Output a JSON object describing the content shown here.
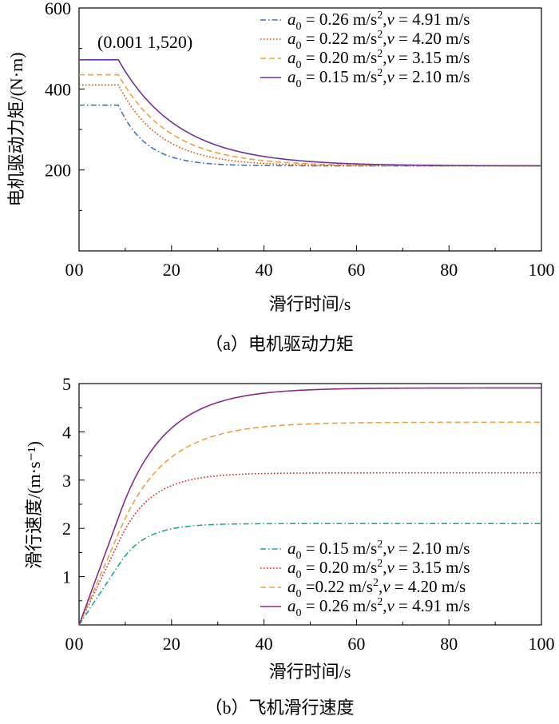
{
  "chart_data": [
    {
      "type": "line",
      "caption": "（a）电机驱动力矩",
      "title": "",
      "xlabel": "滑行时间/s",
      "ylabel": "电机驱动力矩/(N·m)",
      "xlim": [
        0,
        100
      ],
      "ylim": [
        0,
        600
      ],
      "xticks": [
        0,
        20,
        40,
        60,
        80,
        100
      ],
      "yticks": [
        200,
        400,
        600
      ],
      "annotation": "(0.001 1,520)",
      "legend_position": "top-right",
      "series": [
        {
          "name": "a0 = 0.26 m/s2,v = 4.91 m/s",
          "label": {
            "pre": "a",
            "sub": "0",
            "mid": " = 0.26 m/s",
            "sup": "2",
            "comma": ",",
            "v": "v",
            "post": " = 4.91 m/s"
          },
          "color": "#4472c4",
          "dash": "dashdot",
          "plateau": 360,
          "final": 210,
          "t_switch": 8.5,
          "tau": 6
        },
        {
          "name": "a0 = 0.22 m/s2,v = 4.20 m/s",
          "label": {
            "pre": "a",
            "sub": "0",
            "mid": " = 0.22 m/s",
            "sup": "2",
            "comma": ",",
            "v": "v",
            "post": " = 4.20 m/s"
          },
          "color": "#c55a11",
          "dash": "dotted",
          "plateau": 410,
          "final": 210,
          "t_switch": 8.5,
          "tau": 9
        },
        {
          "name": "a0 = 0.20 m/s2,v = 3.15 m/s",
          "label": {
            "pre": "a",
            "sub": "0",
            "mid": " = 0.20 m/s",
            "sup": "2",
            "comma": ",",
            "v": "v",
            "post": " = 3.15 m/s"
          },
          "color": "#e8a33c",
          "dash": "dashed",
          "plateau": 435,
          "final": 210,
          "t_switch": 8.5,
          "tau": 11
        },
        {
          "name": "a0 = 0.15 m/s2,v = 2.10 m/s",
          "label": {
            "pre": "a",
            "sub": "0",
            "mid": " = 0.15 m/s",
            "sup": "2",
            "comma": ",",
            "v": "v",
            "post": " = 2.10 m/s"
          },
          "color": "#7030a0",
          "dash": "solid",
          "plateau": 472,
          "final": 210,
          "t_switch": 8.5,
          "tau": 13
        }
      ]
    },
    {
      "type": "line",
      "caption": "（b）飞机滑行速度",
      "title": "",
      "xlabel": "滑行时间/s",
      "ylabel": "滑行速度/(m·s⁻¹)",
      "xlim": [
        0,
        100
      ],
      "ylim": [
        0,
        5
      ],
      "xticks": [
        0,
        20,
        40,
        60,
        80,
        100
      ],
      "yticks": [
        1,
        2,
        3,
        4,
        5
      ],
      "legend_position": "bottom-right",
      "series": [
        {
          "name": "a0 = 0.15 m/s2,v = 2.10 m/s",
          "label": {
            "pre": "a",
            "sub": "0",
            "mid": " = 0.15 m/s",
            "sup": "2",
            "comma": ",",
            "v": "v",
            "post": " = 2.10 m/s"
          },
          "color": "#1aa79a",
          "dash": "dashdot",
          "final": 2.1,
          "t_switch": 9,
          "v_switch": 1.3
        },
        {
          "name": "a0 = 0.20 m/s2,v = 3.15 m/s",
          "label": {
            "pre": "a",
            "sub": "0",
            "mid": " = 0.20 m/s",
            "sup": "2",
            "comma": ",",
            "v": "v",
            "post": " = 3.15 m/s"
          },
          "color": "#e02020",
          "dash": "dotted",
          "final": 3.15,
          "t_switch": 9,
          "v_switch": 1.8
        },
        {
          "name": "a0 =0.22 m/s2,v = 4.20 m/s",
          "label": {
            "pre": "a",
            "sub": "0",
            "mid": " =0.22 m/s",
            "sup": "2",
            "comma": ",",
            "v": "v",
            "post": " = 4.20 m/s"
          },
          "color": "#e8a33c",
          "dash": "dashed",
          "final": 4.2,
          "t_switch": 9,
          "v_switch": 2.0
        },
        {
          "name": "a0 = 0.26 m/s2,v = 4.91 m/s",
          "label": {
            "pre": "a",
            "sub": "0",
            "mid": " = 0.26 m/s",
            "sup": "2",
            "comma": ",",
            "v": "v",
            "post": " = 4.91 m/s"
          },
          "color": "#8b2a8a",
          "dash": "solid",
          "final": 4.91,
          "t_switch": 9,
          "v_switch": 2.35
        }
      ]
    }
  ]
}
